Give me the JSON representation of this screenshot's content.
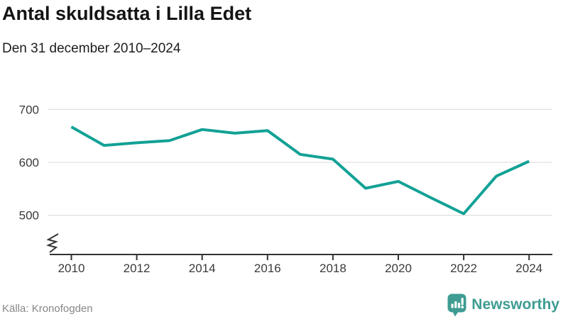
{
  "header": {
    "title": "Antal skuldsatta i Lilla Edet",
    "subtitle": "Den 31 december 2010–2024"
  },
  "footer": {
    "source": "Källa: Kronofogden",
    "brand": "Newsworthy"
  },
  "colors": {
    "line": "#12a195",
    "brand_teal": "#3e9c92",
    "grid": "#e1e1e1",
    "axis": "#333333",
    "tick_label": "#3a3a3a",
    "source_text": "#878787",
    "title_text": "#141414"
  },
  "chart_data": {
    "type": "line",
    "title": "Antal skuldsatta i Lilla Edet",
    "subtitle": "Den 31 december 2010–2024",
    "x": [
      2010,
      2011,
      2012,
      2013,
      2014,
      2015,
      2016,
      2017,
      2018,
      2019,
      2020,
      2021,
      2022,
      2023,
      2024
    ],
    "series": [
      {
        "name": "Antal skuldsatta",
        "values": [
          667,
          632,
          637,
          641,
          662,
          655,
          660,
          615,
          606,
          551,
          564,
          533,
          503,
          574,
          602
        ]
      }
    ],
    "y_ticks": [
      700,
      600,
      500
    ],
    "x_tick_labels": [
      "2010",
      "2012",
      "2014",
      "2016",
      "2018",
      "2020",
      "2022",
      "2024"
    ],
    "ylim": [
      455,
      720
    ],
    "axis_break": true,
    "grid": "horizontal-only",
    "legend": "none",
    "source": "Källa: Kronofogden"
  }
}
